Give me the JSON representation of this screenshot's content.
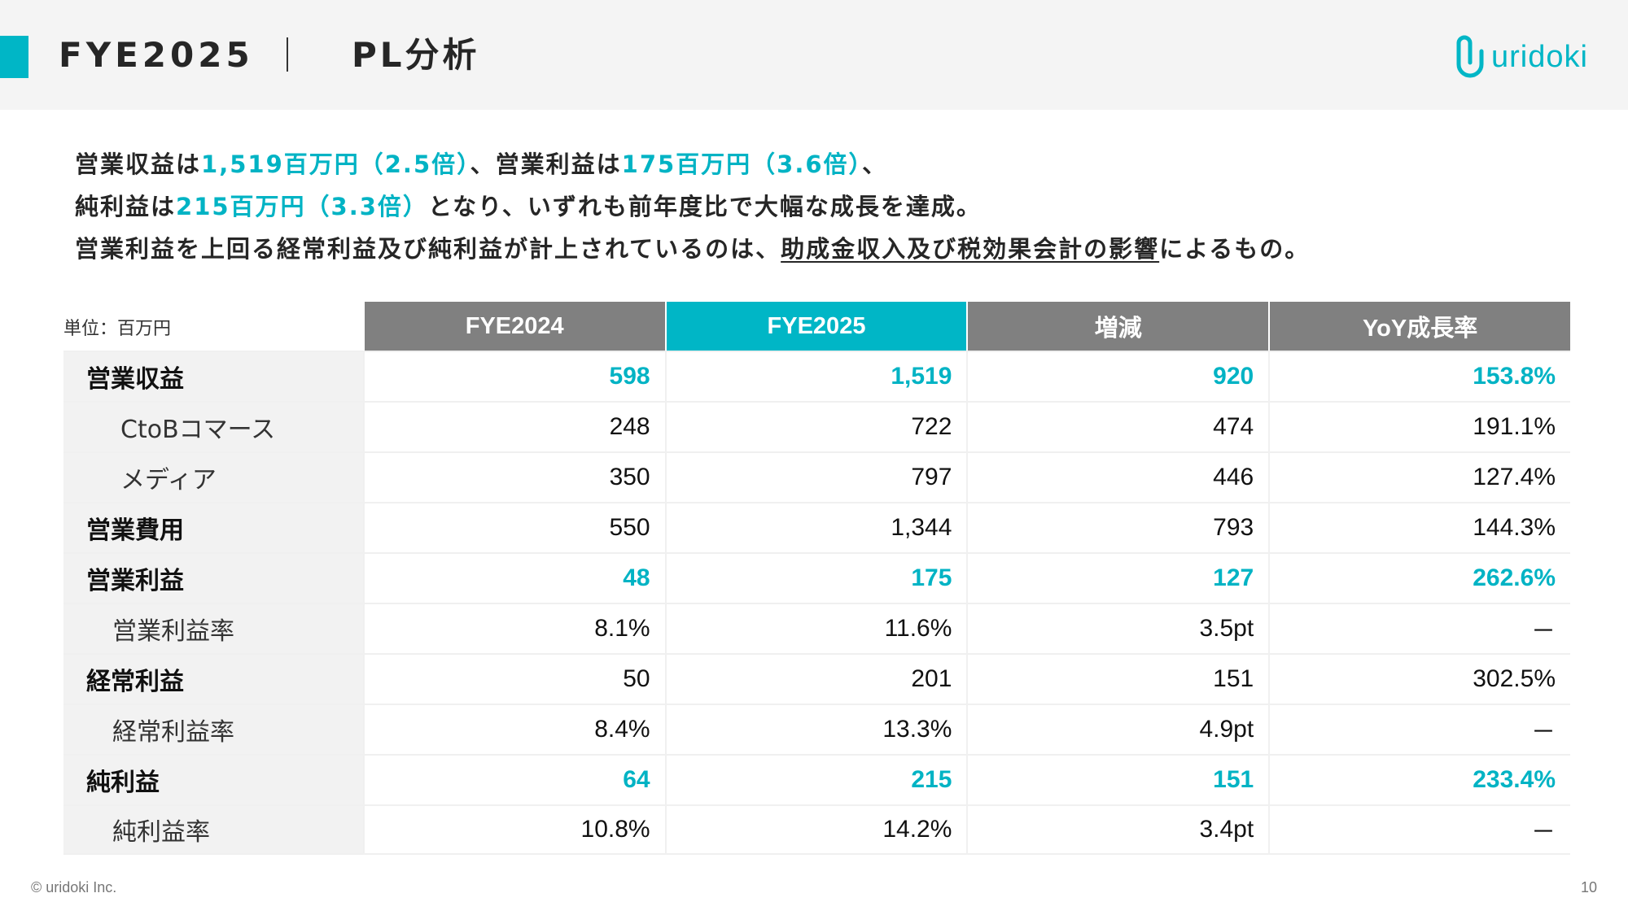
{
  "header": {
    "fiscal_year": "FYE2025",
    "section_title": "PL分析",
    "logo_text": "uridoki",
    "accent_color": "#00b6c6"
  },
  "summary": {
    "line1": [
      {
        "text": "営業収益は",
        "highlight": false
      },
      {
        "text": "1,519百万円（2.5倍）",
        "highlight": true
      },
      {
        "text": "、営業利益は",
        "highlight": false
      },
      {
        "text": "175百万円（3.6倍）",
        "highlight": true
      },
      {
        "text": "、",
        "highlight": false
      }
    ],
    "line2": [
      {
        "text": "純利益は",
        "highlight": false
      },
      {
        "text": "215百万円（3.3倍）",
        "highlight": true
      },
      {
        "text": "となり、いずれも前年度比で大幅な成長を達成。",
        "highlight": false
      }
    ],
    "line3": {
      "before": "営業利益を上回る経常利益及び純利益が計上されているのは、",
      "underlined": "助成金収入及び税効果会計の影響",
      "after": "によるもの。"
    }
  },
  "table": {
    "unit_label": "単位：百万円",
    "columns": [
      "FYE2024",
      "FYE2025",
      "増減",
      "YoY成長率"
    ],
    "rows": [
      {
        "label": "営業収益",
        "style": "bold",
        "highlight": true,
        "values": [
          "598",
          "1,519",
          "920",
          "153.8%"
        ]
      },
      {
        "label": "CtoBコマース",
        "style": "sub",
        "highlight": false,
        "values": [
          "248",
          "722",
          "474",
          "191.1%"
        ]
      },
      {
        "label": "メディア",
        "style": "sub",
        "highlight": false,
        "values": [
          "350",
          "797",
          "446",
          "127.4%"
        ]
      },
      {
        "label": "営業費用",
        "style": "bold",
        "highlight": false,
        "values": [
          "550",
          "1,344",
          "793",
          "144.3%"
        ]
      },
      {
        "label": "営業利益",
        "style": "bold",
        "highlight": true,
        "values": [
          "48",
          "175",
          "127",
          "262.6%"
        ]
      },
      {
        "label": "営業利益率",
        "style": "sub2",
        "highlight": false,
        "values": [
          "8.1%",
          "11.6%",
          "3.5pt",
          "－"
        ]
      },
      {
        "label": "経常利益",
        "style": "bold",
        "highlight": false,
        "values": [
          "50",
          "201",
          "151",
          "302.5%"
        ]
      },
      {
        "label": "経常利益率",
        "style": "sub2",
        "highlight": false,
        "values": [
          "8.4%",
          "13.3%",
          "4.9pt",
          "－"
        ]
      },
      {
        "label": "純利益",
        "style": "bold",
        "highlight": true,
        "values": [
          "64",
          "215",
          "151",
          "233.4%"
        ]
      },
      {
        "label": "純利益率",
        "style": "sub2",
        "highlight": false,
        "values": [
          "10.8%",
          "14.2%",
          "3.4pt",
          "－"
        ]
      }
    ]
  },
  "footer": {
    "copyright": "© uridoki Inc.",
    "page_number": "10"
  }
}
